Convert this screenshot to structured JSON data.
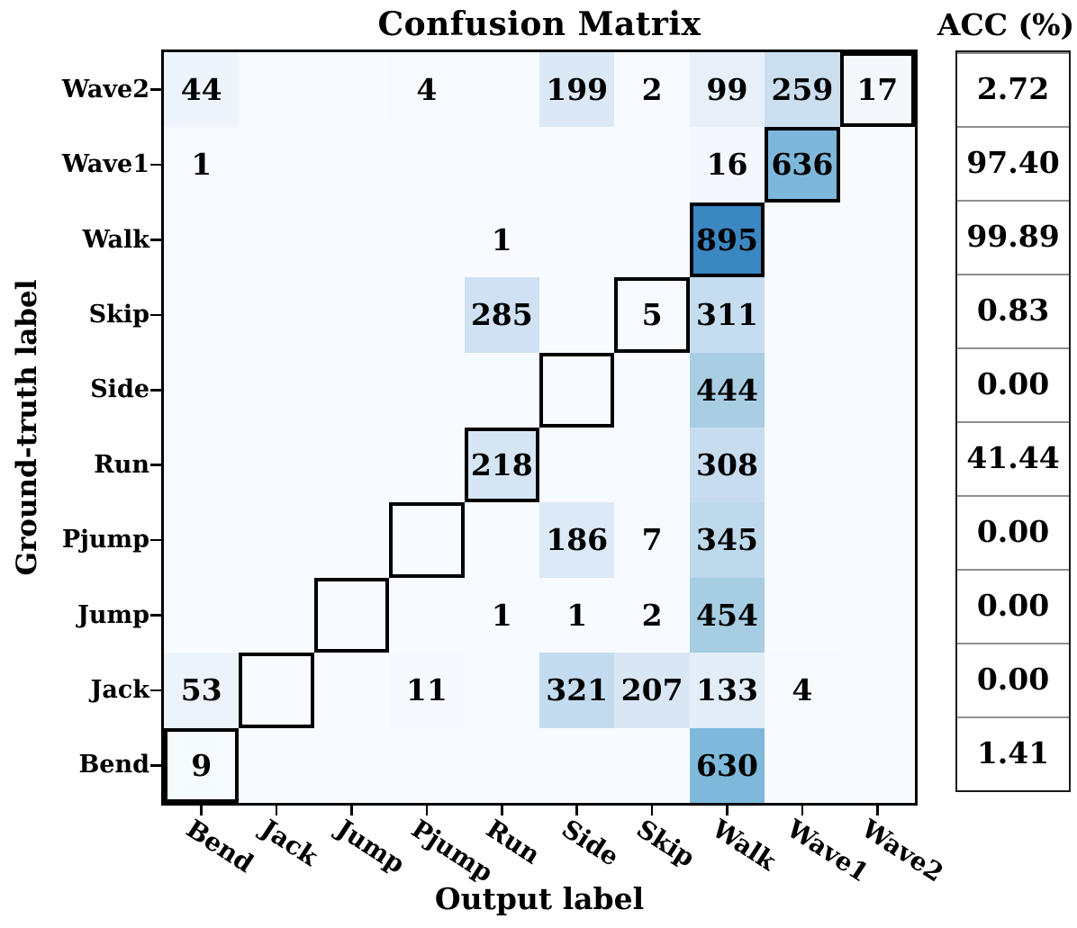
{
  "figure": {
    "title": "Confusion Matrix",
    "acc_header": "ACC (%)",
    "xlabel": "Output label",
    "ylabel": "Ground-truth label"
  },
  "chart_data": {
    "type": "heatmap",
    "colormap": "Blues",
    "title": "Confusion Matrix",
    "xlabel": "Output label",
    "ylabel": "Ground-truth label",
    "row_labels": [
      "Wave2",
      "Wave1",
      "Walk",
      "Skip",
      "Side",
      "Run",
      "Pjump",
      "Jump",
      "Jack",
      "Bend"
    ],
    "col_labels": [
      "Bend",
      "Jack",
      "Jump",
      "Pjump",
      "Run",
      "Side",
      "Skip",
      "Walk",
      "Wave1",
      "Wave2"
    ],
    "matrix": [
      [
        44,
        0,
        0,
        4,
        0,
        199,
        2,
        99,
        259,
        17
      ],
      [
        1,
        0,
        0,
        0,
        0,
        0,
        0,
        16,
        636,
        0
      ],
      [
        0,
        0,
        0,
        0,
        1,
        0,
        0,
        895,
        0,
        0
      ],
      [
        0,
        0,
        0,
        0,
        285,
        0,
        5,
        311,
        0,
        0
      ],
      [
        0,
        0,
        0,
        0,
        0,
        0,
        0,
        444,
        0,
        0
      ],
      [
        0,
        0,
        0,
        0,
        218,
        0,
        0,
        308,
        0,
        0
      ],
      [
        0,
        0,
        0,
        0,
        0,
        186,
        7,
        345,
        0,
        0
      ],
      [
        0,
        0,
        0,
        0,
        1,
        1,
        2,
        454,
        0,
        0
      ],
      [
        53,
        0,
        0,
        11,
        0,
        321,
        207,
        133,
        4,
        0
      ],
      [
        9,
        0,
        0,
        0,
        0,
        0,
        0,
        630,
        0,
        0
      ]
    ],
    "acc_column": {
      "header": "ACC (%)",
      "values": [
        "2.72",
        "97.40",
        "99.89",
        "0.83",
        "0.00",
        "41.44",
        "0.00",
        "0.00",
        "0.00",
        "1.41"
      ]
    },
    "diagonal_highlighted": true,
    "color_scale_stops": [
      [
        0,
        "#f7fbff"
      ],
      [
        44,
        "#eef4fb"
      ],
      [
        99,
        "#e7f0f9"
      ],
      [
        133,
        "#e2edf8"
      ],
      [
        199,
        "#dbe8f5"
      ],
      [
        259,
        "#cbdff0"
      ],
      [
        285,
        "#cfe1f2"
      ],
      [
        321,
        "#c3dbee"
      ],
      [
        454,
        "#a7cde3"
      ],
      [
        636,
        "#7db8db"
      ],
      [
        895,
        "#3b87c1"
      ]
    ],
    "colors": {
      "matrix_background": "#f7fbff",
      "cell_text": "#000000",
      "diagonal_border": "#000000",
      "axis_border": "#000000",
      "table_border": "#1a1a1a",
      "table_divider": "#8f8f8f",
      "page_background": "#ffffff"
    }
  }
}
